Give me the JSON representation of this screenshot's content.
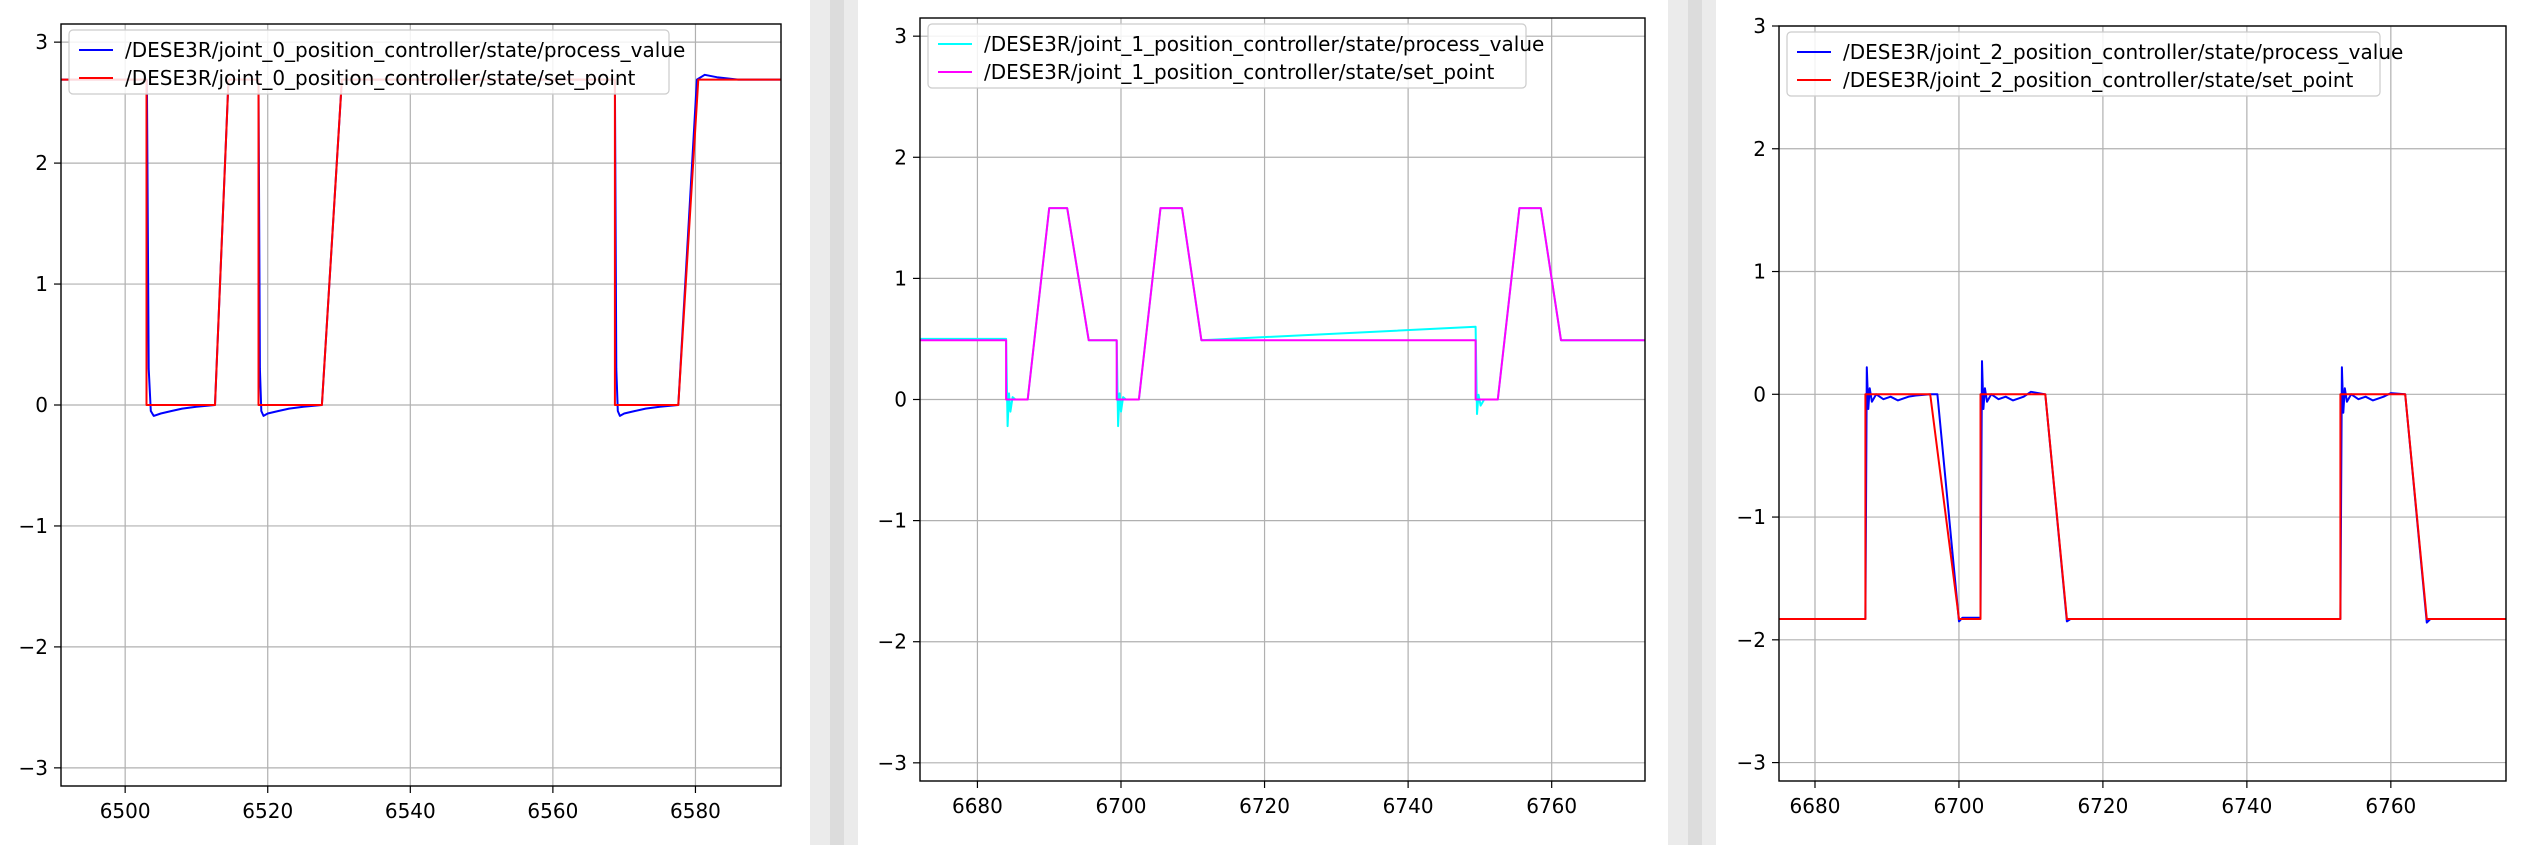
{
  "chart_data": [
    {
      "type": "line",
      "title": "",
      "xlabel": "",
      "ylabel": "",
      "xlim": [
        6491,
        6592
      ],
      "ylim": [
        -3.15,
        3.15
      ],
      "xticks": [
        6500,
        6520,
        6540,
        6560,
        6580
      ],
      "xtick_labels": [
        "6500",
        "6520",
        "6540",
        "6560",
        "6580"
      ],
      "yticks": [
        3,
        2,
        1,
        0,
        -1,
        -2,
        -3
      ],
      "ytick_labels": [
        "3",
        "2",
        "1",
        "0",
        "−1",
        "−2",
        "−3"
      ],
      "grid": true,
      "legend_position": "top-left",
      "series": [
        {
          "name": "/DESE3R/joint_0_position_controller/state/process_value",
          "color": "#0000ff",
          "x": [
            6491,
            6503.05,
            6503.3,
            6503.6,
            6504,
            6505,
            6506.5,
            6508,
            6510,
            6512.6,
            6514.5,
            6518.7,
            6518.9,
            6519.1,
            6519.4,
            6520,
            6521.5,
            6523,
            6525,
            6527.6,
            6530.4,
            6568.7,
            6568.9,
            6569.1,
            6569.4,
            6570,
            6571.5,
            6573,
            6575,
            6577.6,
            6580.2,
            6581.3,
            6583,
            6586,
            6592
          ],
          "y": [
            2.69,
            2.69,
            0.3,
            -0.05,
            -0.09,
            -0.07,
            -0.05,
            -0.03,
            -0.015,
            0.0,
            2.69,
            2.69,
            0.3,
            -0.05,
            -0.09,
            -0.07,
            -0.05,
            -0.03,
            -0.015,
            0.0,
            2.69,
            2.69,
            0.3,
            -0.05,
            -0.09,
            -0.07,
            -0.05,
            -0.03,
            -0.015,
            0.0,
            2.69,
            2.73,
            2.71,
            2.69,
            2.69
          ]
        },
        {
          "name": "/DESE3R/joint_0_position_controller/state/set_point",
          "color": "#ff0000",
          "x": [
            6491,
            6503,
            6503,
            6512.6,
            6514.5,
            6518.7,
            6518.7,
            6527.6,
            6530.4,
            6568.7,
            6568.7,
            6577.6,
            6580.4,
            6592
          ],
          "y": [
            2.69,
            2.69,
            0.0,
            0.0,
            2.69,
            2.69,
            0.0,
            0.0,
            2.69,
            2.69,
            0.0,
            0.0,
            2.69,
            2.69
          ]
        }
      ]
    },
    {
      "type": "line",
      "title": "",
      "xlabel": "",
      "ylabel": "",
      "xlim": [
        6672,
        6773
      ],
      "ylim": [
        -3.15,
        3.15
      ],
      "xticks": [
        6680,
        6700,
        6720,
        6740,
        6760
      ],
      "xtick_labels": [
        "6680",
        "6700",
        "6720",
        "6740",
        "6760"
      ],
      "yticks": [
        3,
        2,
        1,
        0,
        -1,
        -2,
        -3
      ],
      "ytick_labels": [
        "3",
        "2",
        "1",
        "0",
        "−1",
        "−2",
        "−3"
      ],
      "grid": true,
      "legend_position": "top-left",
      "series": [
        {
          "name": "/DESE3R/joint_1_position_controller/state/process_value",
          "color": "#00ffff",
          "x": [
            6672,
            6684,
            6684.2,
            6684.4,
            6684.6,
            6684.9,
            6685.3,
            6687,
            6690,
            6692.5,
            6695.5,
            6699.4,
            6699.6,
            6699.8,
            6700,
            6700.3,
            6700.7,
            6702.5,
            6705.5,
            6708.5,
            6711.2,
            6749.4,
            6749.6,
            6749.8,
            6750.1,
            6750.6,
            6752.5,
            6755.5,
            6758.5,
            6761.3,
            6773
          ],
          "y": [
            0.5,
            0.5,
            -0.22,
            0.05,
            -0.1,
            0.02,
            0.0,
            0.0,
            1.58,
            1.58,
            0.49,
            0.49,
            -0.22,
            0.05,
            -0.1,
            0.02,
            0.0,
            0.0,
            1.58,
            1.58,
            0.49,
            0.6,
            -0.12,
            0.04,
            -0.05,
            0.0,
            0.0,
            1.58,
            1.58,
            0.49,
            0.49
          ]
        },
        {
          "name": "/DESE3R/joint_1_position_controller/state/set_point",
          "color": "#ff00ff",
          "x": [
            6672,
            6684,
            6684,
            6687,
            6690,
            6692.5,
            6695.5,
            6699.4,
            6699.4,
            6702.5,
            6705.5,
            6708.5,
            6711.2,
            6749.4,
            6749.4,
            6752.5,
            6755.5,
            6758.5,
            6761.3,
            6773
          ],
          "y": [
            0.49,
            0.49,
            0.0,
            0.0,
            1.58,
            1.58,
            0.49,
            0.49,
            0.0,
            0.0,
            1.58,
            1.58,
            0.49,
            0.49,
            0.0,
            0.0,
            1.58,
            1.58,
            0.49,
            0.49
          ]
        }
      ]
    },
    {
      "type": "line",
      "title": "",
      "xlabel": "",
      "ylabel": "",
      "xlim": [
        6675,
        6776
      ],
      "ylim": [
        -3.15,
        3.0
      ],
      "xticks": [
        6680,
        6700,
        6720,
        6740,
        6760
      ],
      "xtick_labels": [
        "6680",
        "6700",
        "6720",
        "6740",
        "6760"
      ],
      "yticks": [
        3,
        2,
        1,
        0,
        -1,
        -2,
        -3
      ],
      "ytick_labels": [
        "3",
        "2",
        "1",
        "0",
        "−1",
        "−2",
        "−3"
      ],
      "grid": true,
      "legend_position": "top-left",
      "series": [
        {
          "name": "/DESE3R/joint_2_position_controller/state/process_value",
          "color": "#0000ff",
          "x": [
            6675,
            6687,
            6687.2,
            6687.4,
            6687.6,
            6687.9,
            6688.5,
            6689.5,
            6690.5,
            6691.5,
            6693,
            6694,
            6696,
            6697,
            6700,
            6700.5,
            6703,
            6703.2,
            6703.4,
            6703.6,
            6703.9,
            6704.5,
            6705.5,
            6706.5,
            6707.5,
            6709,
            6710,
            6712,
            6715,
            6715.5,
            6753,
            6753.2,
            6753.4,
            6753.6,
            6753.9,
            6754.5,
            6755.5,
            6756.5,
            6757.5,
            6759,
            6760,
            6762,
            6765,
            6765.5,
            6776
          ],
          "y": [
            -1.83,
            -1.83,
            0.22,
            -0.12,
            0.05,
            -0.06,
            0.0,
            -0.04,
            -0.02,
            -0.05,
            -0.02,
            -0.01,
            0.0,
            0.0,
            -1.85,
            -1.82,
            -1.82,
            0.27,
            -0.12,
            0.05,
            -0.06,
            0.0,
            -0.04,
            -0.02,
            -0.05,
            -0.02,
            0.02,
            0.0,
            -1.85,
            -1.83,
            -1.83,
            0.22,
            -0.15,
            0.05,
            -0.06,
            0.0,
            -0.04,
            -0.02,
            -0.05,
            -0.02,
            0.01,
            0.0,
            -1.86,
            -1.83,
            -1.83
          ]
        },
        {
          "name": "/DESE3R/joint_2_position_controller/state/set_point",
          "color": "#ff0000",
          "x": [
            6675,
            6687,
            6687,
            6696,
            6700,
            6703,
            6703,
            6712,
            6715,
            6753,
            6753,
            6762,
            6765,
            6776
          ],
          "y": [
            -1.83,
            -1.83,
            0.0,
            0.0,
            -1.83,
            -1.83,
            0.0,
            0.0,
            -1.83,
            -1.83,
            0.0,
            0.0,
            -1.83,
            -1.83
          ]
        }
      ]
    }
  ]
}
